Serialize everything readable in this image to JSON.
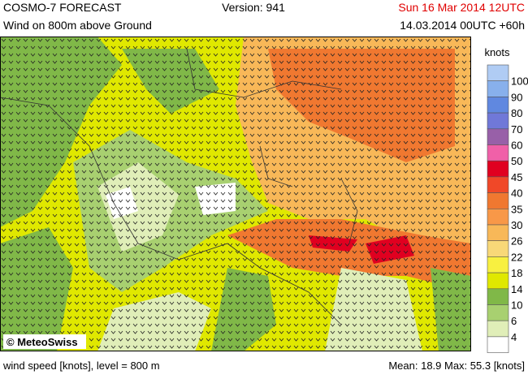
{
  "header": {
    "title": "COSMO-7 FORECAST",
    "version": "Version: 941",
    "valid_time": "Sun 16 Mar 2014 12UTC",
    "subtitle": "Wind on 800m above Ground",
    "run_time": "14.03.2014 00UTC +60h"
  },
  "map": {
    "copyright": "© MeteoSwiss"
  },
  "legend": {
    "unit": "knots",
    "top_color": "#b0ccf4",
    "levels": [
      {
        "value": 100,
        "color": "#88b0ec"
      },
      {
        "value": 90,
        "color": "#6088e0"
      },
      {
        "value": 80,
        "color": "#7078d8"
      },
      {
        "value": 70,
        "color": "#9860a8"
      },
      {
        "value": 60,
        "color": "#f060a8"
      },
      {
        "value": 50,
        "color": "#e00020"
      },
      {
        "value": 45,
        "color": "#f04828"
      },
      {
        "value": 40,
        "color": "#f07830"
      },
      {
        "value": 35,
        "color": "#f89848"
      },
      {
        "value": 30,
        "color": "#f8b858"
      },
      {
        "value": 26,
        "color": "#f8d878"
      },
      {
        "value": 22,
        "color": "#f8f040"
      },
      {
        "value": 18,
        "color": "#e0e800"
      },
      {
        "value": 14,
        "color": "#80b848"
      },
      {
        "value": 10,
        "color": "#a8d070"
      },
      {
        "value": 6,
        "color": "#e0eeb8"
      },
      {
        "value": 4,
        "color": "#ffffff"
      }
    ]
  },
  "footer": {
    "description": "wind speed [knots], level = 800 m",
    "stats": "Mean:  18.9 Max:  55.3 [knots]"
  }
}
